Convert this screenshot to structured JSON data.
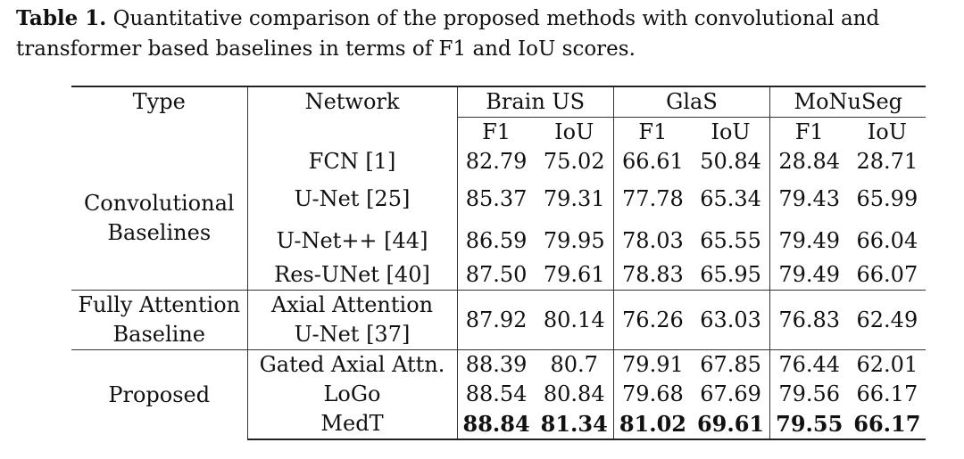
{
  "caption": {
    "label": "Table 1.",
    "text": " Quantitative comparison of the proposed methods with convolutional and transformer based baselines in terms of F1 and IoU scores."
  },
  "table": {
    "headers": {
      "type": "Type",
      "network": "Network",
      "datasets": [
        "Brain US",
        "GlaS",
        "MoNuSeg"
      ],
      "metrics": [
        "F1",
        "IoU",
        "F1",
        "IoU",
        "F1",
        "IoU"
      ]
    },
    "groups": [
      {
        "type_lines": [
          "Convolutional",
          "Baselines"
        ],
        "rows": [
          {
            "network_lines": [
              "FCN [1]"
            ],
            "values": [
              "82.79",
              "75.02",
              "66.61",
              "50.84",
              "28.84",
              "28.71"
            ]
          },
          {
            "network_lines": [
              "U-Net [25]"
            ],
            "values": [
              "85.37",
              "79.31",
              "77.78",
              "65.34",
              "79.43",
              "65.99"
            ]
          },
          {
            "network_lines": [
              "U-Net++ [44]"
            ],
            "values": [
              "86.59",
              "79.95",
              "78.03",
              "65.55",
              "79.49",
              "66.04"
            ]
          },
          {
            "network_lines": [
              "Res-UNet [40]"
            ],
            "values": [
              "87.50",
              "79.61",
              "78.83",
              "65.95",
              "79.49",
              "66.07"
            ]
          }
        ]
      },
      {
        "type_lines": [
          "Fully Attention",
          "Baseline"
        ],
        "rows": [
          {
            "network_lines": [
              "Axial Attention",
              "U-Net [37]"
            ],
            "values": [
              "87.92",
              "80.14",
              "76.26",
              "63.03",
              "76.83",
              "62.49"
            ]
          }
        ]
      },
      {
        "type_lines": [
          "Proposed"
        ],
        "rows": [
          {
            "network_lines": [
              "Gated Axial Attn."
            ],
            "values": [
              "88.39",
              "80.7",
              "79.91",
              "67.85",
              "76.44",
              "62.01"
            ]
          },
          {
            "network_lines": [
              "LoGo"
            ],
            "values": [
              "88.54",
              "80.84",
              "79.68",
              "67.69",
              "79.56",
              "66.17"
            ]
          },
          {
            "network_lines": [
              "MedT"
            ],
            "values": [
              "88.84",
              "81.34",
              "81.02",
              "69.61",
              "79.55",
              "66.17"
            ],
            "bold": true
          }
        ]
      }
    ]
  }
}
